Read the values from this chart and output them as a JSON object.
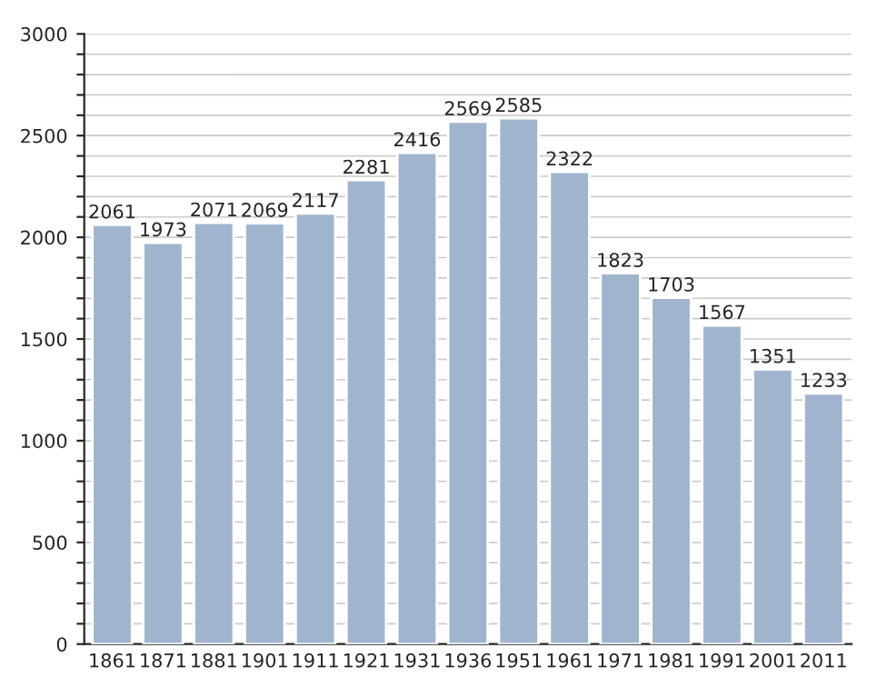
{
  "chart_data": {
    "type": "bar",
    "categories": [
      "1861",
      "1871",
      "1881",
      "1901",
      "1911",
      "1921",
      "1931",
      "1936",
      "1951",
      "1961",
      "1971",
      "1981",
      "1991",
      "2001",
      "2011"
    ],
    "values": [
      2061,
      1973,
      2071,
      2069,
      2117,
      2281,
      2416,
      2569,
      2585,
      2322,
      1823,
      1703,
      1567,
      1351,
      1233
    ],
    "color": "#a0b5cd",
    "ylim": [
      0,
      3000
    ],
    "yticks": [
      0,
      {
        "value": 100,
        "label": null
      },
      {
        "value": 200,
        "label": null
      },
      {
        "value": 300,
        "label": null
      },
      {
        "value": 400,
        "label": null
      },
      500,
      {
        "value": 600,
        "label": null
      },
      {
        "value": 700,
        "label": null
      },
      {
        "value": 800,
        "label": null
      },
      {
        "value": 900,
        "label": null
      },
      1000,
      {
        "value": 1100,
        "label": null
      },
      {
        "value": 1200,
        "label": null
      },
      {
        "value": 1300,
        "label": null
      },
      {
        "value": 1400,
        "label": null
      },
      1500,
      {
        "value": 1600,
        "label": null
      },
      {
        "value": 1700,
        "label": null
      },
      {
        "value": 1800,
        "label": null
      },
      {
        "value": 1900,
        "label": null
      },
      2000,
      {
        "value": 2100,
        "label": null
      },
      {
        "value": 2200,
        "label": null
      },
      {
        "value": 2300,
        "label": null
      },
      {
        "value": 2400,
        "label": null
      },
      2500,
      {
        "value": 2600,
        "label": null
      },
      {
        "value": 2700,
        "label": null
      },
      {
        "value": 2800,
        "label": null
      },
      {
        "value": 2900,
        "label": null
      },
      3000
    ],
    "grid": "y",
    "data_labels": true
  }
}
